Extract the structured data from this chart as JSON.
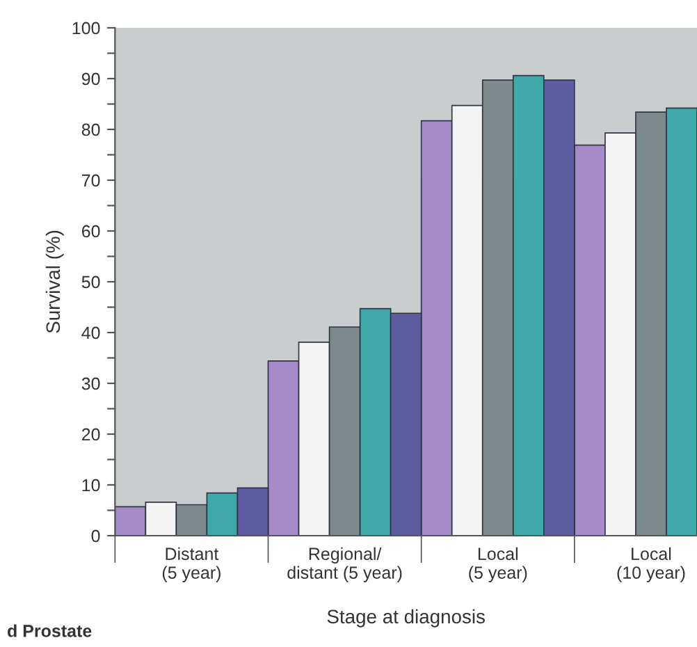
{
  "chart_data": {
    "type": "bar",
    "xlabel": "Stage at diagnosis",
    "ylabel": "Survival (%)",
    "categories": [
      "Distant\n(5 year)",
      "Regional/\ndistant (5 year)",
      "Local\n(5 year)",
      "Local\n(10 year)"
    ],
    "series": [
      {
        "color": "#a58cc8",
        "values": [
          5.7,
          34.4,
          81.7,
          76.9
        ]
      },
      {
        "color": "#f4f4f4",
        "values": [
          6.6,
          38.1,
          84.7,
          79.3
        ]
      },
      {
        "color": "#7d8a8c",
        "values": [
          6.1,
          41.1,
          89.7,
          83.4
        ]
      },
      {
        "color": "#3fa8a8",
        "values": [
          8.4,
          44.7,
          90.6,
          84.2
        ]
      },
      {
        "color": "#5c5c9e",
        "values": [
          9.4,
          43.8,
          89.7,
          null
        ]
      }
    ],
    "ylim": [
      0,
      100
    ],
    "yticks": [
      0,
      {
        "value": 5,
        "label": null
      },
      10,
      {
        "value": 15,
        "label": null
      },
      20,
      {
        "value": 25,
        "label": null
      },
      30,
      {
        "value": 35,
        "label": null
      },
      40,
      {
        "value": 45,
        "label": null
      },
      50,
      {
        "value": 55,
        "label": null
      },
      60,
      {
        "value": 65,
        "label": null
      },
      70,
      {
        "value": 75,
        "label": null
      },
      80,
      {
        "value": 85,
        "label": null
      },
      90,
      {
        "value": 95,
        "label": null
      },
      100
    ],
    "grid": false,
    "legend": false,
    "annotations": [
      "d Prostate"
    ]
  }
}
